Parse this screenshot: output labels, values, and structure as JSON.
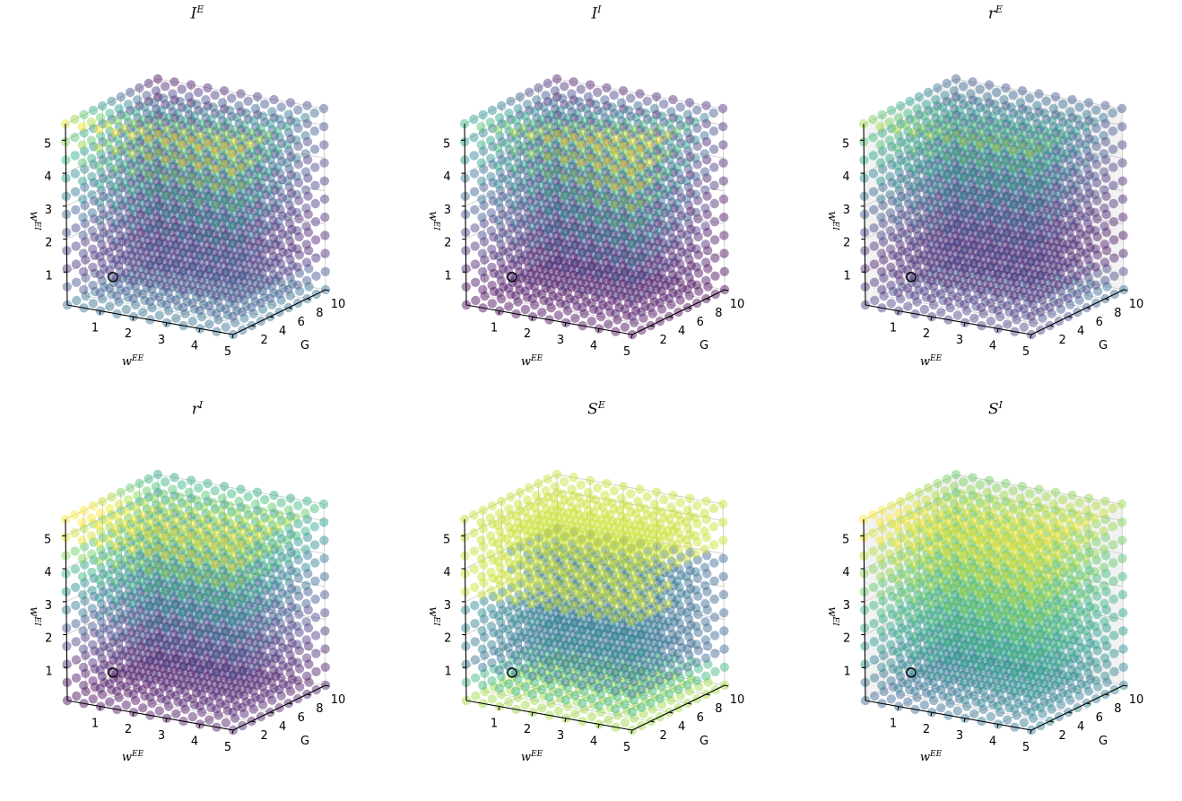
{
  "figure": {
    "panels": [
      {
        "base": "I",
        "sup": "E"
      },
      {
        "base": "I",
        "sup": "I"
      },
      {
        "base": "r",
        "sup": "E"
      },
      {
        "base": "r",
        "sup": "I"
      },
      {
        "base": "S",
        "sup": "E"
      },
      {
        "base": "S",
        "sup": "I"
      }
    ]
  },
  "chart_data": [
    {
      "type": "scatter",
      "subtype": "3d",
      "title": "I^E",
      "pattern": "ie",
      "pane": "none",
      "xlabel": "w^EE",
      "ylabel": "G",
      "zlabel": "w^EI",
      "xlim": [
        0,
        5
      ],
      "ylim": [
        0,
        10
      ],
      "zlim": [
        0,
        5.5
      ],
      "xticks": [
        1,
        2,
        3,
        4,
        5
      ],
      "yticks": [
        2,
        4,
        6,
        8,
        10
      ],
      "zticks": [
        1,
        2,
        3,
        4,
        5
      ],
      "highlight": {
        "x": 1,
        "y": 1,
        "z": 1
      },
      "colormap": "viridis",
      "grid": true
    },
    {
      "type": "scatter",
      "subtype": "3d",
      "title": "I^I",
      "pattern": "ii",
      "pane": "none",
      "xlabel": "w^EE",
      "ylabel": "G",
      "zlabel": "w^EI",
      "xlim": [
        0,
        5
      ],
      "ylim": [
        0,
        10
      ],
      "zlim": [
        0,
        5.5
      ],
      "xticks": [
        1,
        2,
        3,
        4,
        5
      ],
      "yticks": [
        2,
        4,
        6,
        8,
        10
      ],
      "zticks": [
        1,
        2,
        3,
        4,
        5
      ],
      "highlight": {
        "x": 1,
        "y": 1,
        "z": 1
      },
      "colormap": "viridis",
      "grid": true
    },
    {
      "type": "scatter",
      "subtype": "3d",
      "title": "r^E",
      "pattern": "re",
      "pane": "grey",
      "xlabel": "w^EE",
      "ylabel": "G",
      "zlabel": "w^EI",
      "xlim": [
        0,
        5
      ],
      "ylim": [
        0,
        10
      ],
      "zlim": [
        0,
        5.5
      ],
      "xticks": [
        1,
        2,
        3,
        4,
        5
      ],
      "yticks": [
        2,
        4,
        6,
        8,
        10
      ],
      "zticks": [
        1,
        2,
        3,
        4,
        5
      ],
      "highlight": {
        "x": 1,
        "y": 1,
        "z": 1
      },
      "colormap": "viridis",
      "grid": true
    },
    {
      "type": "scatter",
      "subtype": "3d",
      "title": "r^I",
      "pattern": "ri",
      "pane": "none",
      "xlabel": "w^EE",
      "ylabel": "G",
      "zlabel": "w^EI",
      "xlim": [
        0,
        5
      ],
      "ylim": [
        0,
        10
      ],
      "zlim": [
        0,
        5.5
      ],
      "xticks": [
        1,
        2,
        3,
        4,
        5
      ],
      "yticks": [
        2,
        4,
        6,
        8,
        10
      ],
      "zticks": [
        1,
        2,
        3,
        4,
        5
      ],
      "highlight": {
        "x": 1,
        "y": 1,
        "z": 1
      },
      "colormap": "viridis",
      "grid": true
    },
    {
      "type": "scatter",
      "subtype": "3d",
      "title": "S^E",
      "pattern": "se",
      "pane": "none",
      "xlabel": "w^EE",
      "ylabel": "G",
      "zlabel": "w^EI",
      "xlim": [
        0,
        5
      ],
      "ylim": [
        0,
        10
      ],
      "zlim": [
        0,
        5.5
      ],
      "xticks": [
        1,
        2,
        3,
        4,
        5
      ],
      "yticks": [
        2,
        4,
        6,
        8,
        10
      ],
      "zticks": [
        1,
        2,
        3,
        4,
        5
      ],
      "highlight": {
        "x": 1,
        "y": 1,
        "z": 1
      },
      "colormap": "viridis",
      "grid": true
    },
    {
      "type": "scatter",
      "subtype": "3d",
      "title": "S^I",
      "pattern": "si",
      "pane": "grey",
      "xlabel": "w^EE",
      "ylabel": "G",
      "zlabel": "w^EI",
      "xlim": [
        0,
        5
      ],
      "ylim": [
        0,
        10
      ],
      "zlim": [
        0,
        5.5
      ],
      "xticks": [
        1,
        2,
        3,
        4,
        5
      ],
      "yticks": [
        2,
        4,
        6,
        8,
        10
      ],
      "zticks": [
        1,
        2,
        3,
        4,
        5
      ],
      "highlight": {
        "x": 1,
        "y": 1,
        "z": 1
      },
      "colormap": "viridis",
      "grid": true
    }
  ]
}
